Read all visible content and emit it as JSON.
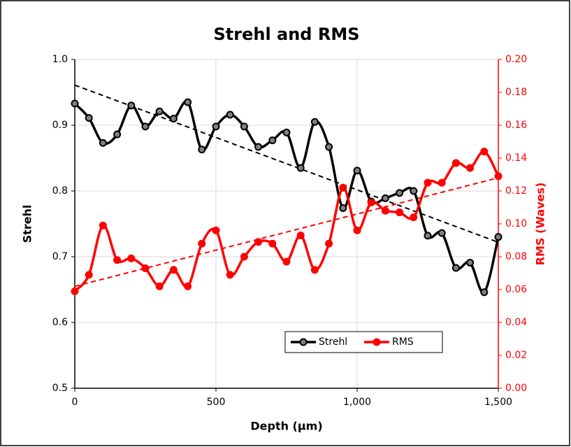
{
  "chart_data": {
    "type": "line",
    "title": "Strehl and RMS",
    "xlabel": "Depth (µm)",
    "ylabel": "Strehl",
    "y2label": "RMS (Waves)",
    "x": [
      0,
      50,
      100,
      150,
      200,
      250,
      300,
      350,
      400,
      450,
      500,
      550,
      600,
      650,
      700,
      750,
      800,
      850,
      900,
      950,
      1000,
      1050,
      1100,
      1150,
      1200,
      1250,
      1300,
      1350,
      1400,
      1450,
      1500
    ],
    "xlim": [
      0,
      1500
    ],
    "xticks": [
      0,
      500,
      {
        "value": 1000,
        "label": "1,000"
      },
      {
        "value": 1500,
        "label": "1,500"
      }
    ],
    "ylim": [
      0.5,
      1.0
    ],
    "yticks": [
      0.5,
      0.6,
      0.7,
      0.8,
      0.9,
      {
        "value": 1.0,
        "label": "1.0"
      }
    ],
    "y2lim": [
      0,
      0.2
    ],
    "y2ticks": [
      {
        "value": 0,
        "label": "0.00"
      },
      {
        "value": 0.02,
        "label": "0.02"
      },
      {
        "value": 0.04,
        "label": "0.04"
      },
      {
        "value": 0.06,
        "label": "0.06"
      },
      {
        "value": 0.08,
        "label": "0.08"
      },
      {
        "value": 0.1,
        "label": "0.10"
      },
      {
        "value": 0.12,
        "label": "0.12"
      },
      {
        "value": 0.14,
        "label": "0.14"
      },
      {
        "value": 0.16,
        "label": "0.16"
      },
      {
        "value": 0.18,
        "label": "0.18"
      },
      {
        "value": 0.2,
        "label": "0.20"
      }
    ],
    "grid": true,
    "legend": "lower center",
    "series": [
      {
        "name": "Strehl",
        "color": "#000000",
        "marker_fill": "#808080",
        "axis": "y",
        "values": [
          0.933,
          0.911,
          0.873,
          0.886,
          0.93,
          0.898,
          0.921,
          0.91,
          0.935,
          0.863,
          0.898,
          0.916,
          0.898,
          0.867,
          0.877,
          0.889,
          0.835,
          0.905,
          0.867,
          0.774,
          0.831,
          0.784,
          0.789,
          0.797,
          0.8,
          0.732,
          0.736,
          0.683,
          0.691,
          0.646,
          0.73
        ],
        "trend": [
          0.961,
          0.722
        ]
      },
      {
        "name": "RMS",
        "color": "#ff0000",
        "marker_fill": "#ff0000",
        "axis": "y2",
        "values": [
          0.059,
          0.069,
          0.099,
          0.078,
          0.079,
          0.073,
          0.062,
          0.072,
          0.062,
          0.088,
          0.096,
          0.069,
          0.08,
          0.089,
          0.088,
          0.077,
          0.093,
          0.072,
          0.088,
          0.122,
          0.096,
          0.113,
          0.108,
          0.107,
          0.104,
          0.125,
          0.125,
          0.137,
          0.134,
          0.144,
          0.129
        ],
        "trend": [
          0.062,
          0.128
        ]
      }
    ]
  }
}
